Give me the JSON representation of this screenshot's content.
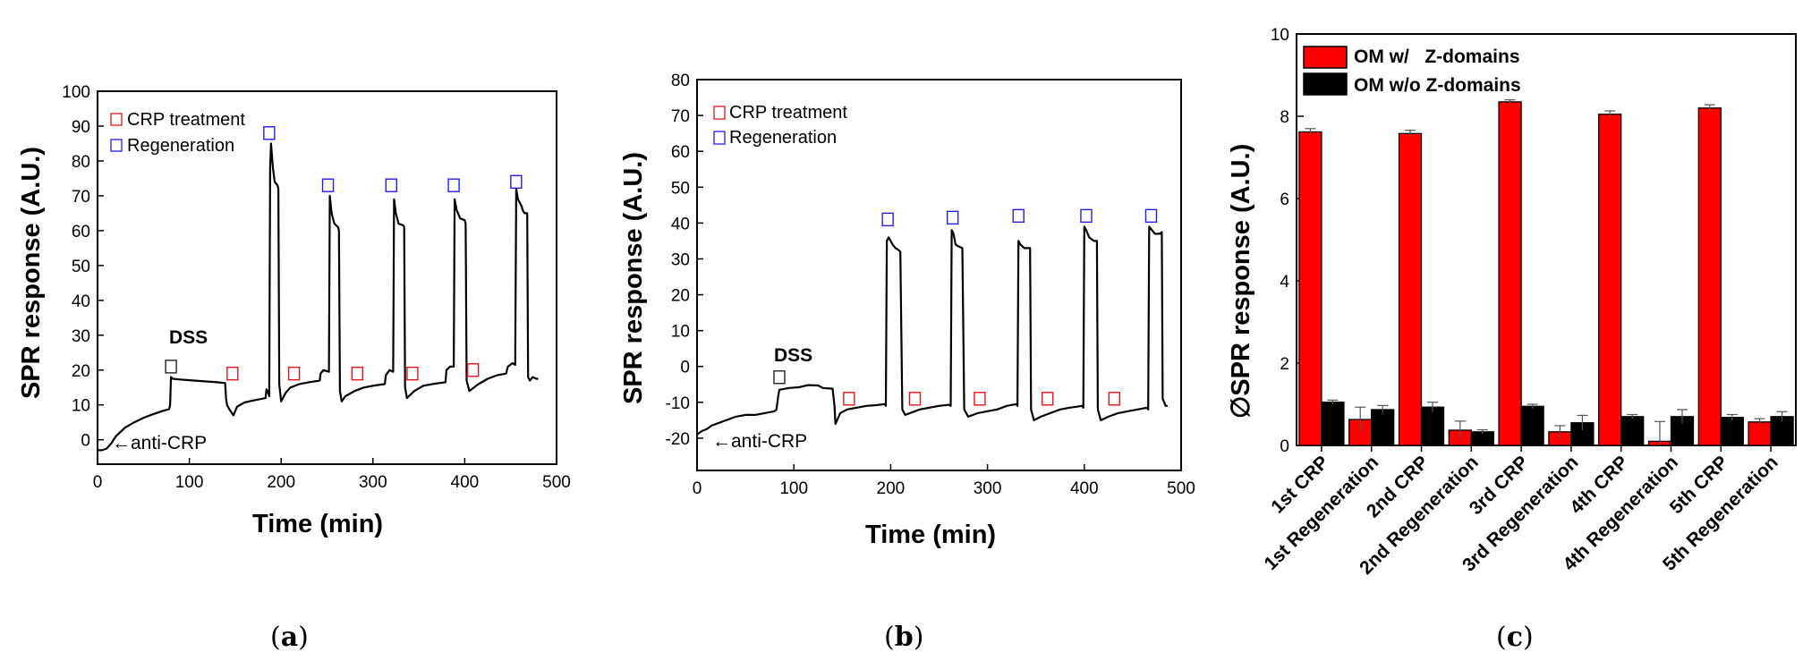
{
  "chart_data": [
    {
      "id": "a",
      "type": "line",
      "caption": "a",
      "xlabel": "Time (min)",
      "ylabel": "SPR response (A.U.)",
      "xlim": [
        0,
        500
      ],
      "ylim": [
        -7,
        100
      ],
      "xticks": [
        0,
        100,
        200,
        300,
        400,
        500
      ],
      "yticks": [
        0,
        10,
        20,
        30,
        40,
        50,
        60,
        70,
        80,
        90,
        100
      ],
      "legend": [
        {
          "label": "CRP treatment",
          "color": "#e8141b"
        },
        {
          "label": "Regeneration",
          "color": "#1f1ff5"
        }
      ],
      "annotations": [
        {
          "text": "DSS",
          "x": 82,
          "y": 27
        },
        {
          "text": "←anti-CRP",
          "x": 15,
          "y": -3
        }
      ],
      "markers": [
        {
          "kind": "dss",
          "x": 80,
          "y": 21
        },
        {
          "kind": "crp",
          "x": 147,
          "y": 19
        },
        {
          "kind": "crp",
          "x": 214,
          "y": 19
        },
        {
          "kind": "crp",
          "x": 283,
          "y": 19
        },
        {
          "kind": "crp",
          "x": 343,
          "y": 19
        },
        {
          "kind": "crp",
          "x": 409,
          "y": 20
        },
        {
          "kind": "regen",
          "x": 187,
          "y": 88
        },
        {
          "kind": "regen",
          "x": 251,
          "y": 73
        },
        {
          "kind": "regen",
          "x": 320,
          "y": 73
        },
        {
          "kind": "regen",
          "x": 388,
          "y": 73
        },
        {
          "kind": "regen",
          "x": 456,
          "y": 74
        }
      ],
      "trace": [
        [
          0,
          -3
        ],
        [
          5,
          -3
        ],
        [
          10,
          -2.5
        ],
        [
          15,
          -1
        ],
        [
          20,
          1
        ],
        [
          30,
          3.5
        ],
        [
          40,
          5
        ],
        [
          50,
          6.3
        ],
        [
          60,
          7.3
        ],
        [
          70,
          8.2
        ],
        [
          78,
          8.8
        ],
        [
          79,
          10
        ],
        [
          80,
          18
        ],
        [
          82,
          17.5
        ],
        [
          90,
          17.3
        ],
        [
          100,
          17.1
        ],
        [
          110,
          16.9
        ],
        [
          120,
          16.7
        ],
        [
          130,
          16.5
        ],
        [
          139,
          16.3
        ],
        [
          140,
          12
        ],
        [
          141,
          10
        ],
        [
          143,
          9
        ],
        [
          148,
          7
        ],
        [
          152,
          9.5
        ],
        [
          160,
          10.7
        ],
        [
          170,
          11.3
        ],
        [
          180,
          11.8
        ],
        [
          183,
          12
        ],
        [
          184,
          14.5
        ],
        [
          186,
          13.5
        ],
        [
          187,
          12.5
        ],
        [
          188,
          78
        ],
        [
          189,
          85
        ],
        [
          191,
          78
        ],
        [
          193,
          74
        ],
        [
          196,
          73
        ],
        [
          197,
          72
        ],
        [
          198,
          16
        ],
        [
          200,
          11
        ],
        [
          205,
          13.5
        ],
        [
          210,
          15
        ],
        [
          220,
          16
        ],
        [
          230,
          16.5
        ],
        [
          242,
          17
        ],
        [
          243,
          19
        ],
        [
          246,
          20
        ],
        [
          252,
          19.5
        ],
        [
          253,
          70
        ],
        [
          255,
          65
        ],
        [
          258,
          62
        ],
        [
          262,
          61
        ],
        [
          263,
          60
        ],
        [
          264,
          14
        ],
        [
          266,
          11
        ],
        [
          270,
          12.5
        ],
        [
          280,
          14
        ],
        [
          290,
          15
        ],
        [
          300,
          15.5
        ],
        [
          313,
          16
        ],
        [
          314,
          18.5
        ],
        [
          318,
          20
        ],
        [
          322,
          19.5
        ],
        [
          323,
          69
        ],
        [
          325,
          65
        ],
        [
          328,
          62
        ],
        [
          333,
          61.5
        ],
        [
          334,
          61
        ],
        [
          335,
          15
        ],
        [
          337,
          12
        ],
        [
          345,
          14
        ],
        [
          355,
          15.5
        ],
        [
          365,
          16
        ],
        [
          379,
          16.5
        ],
        [
          380,
          20
        ],
        [
          384,
          21
        ],
        [
          388,
          21
        ],
        [
          389,
          69
        ],
        [
          391,
          66
        ],
        [
          395,
          63.5
        ],
        [
          400,
          63
        ],
        [
          401,
          62
        ],
        [
          402,
          17
        ],
        [
          405,
          14
        ],
        [
          415,
          16
        ],
        [
          425,
          17.5
        ],
        [
          435,
          18.5
        ],
        [
          445,
          19
        ],
        [
          447,
          21
        ],
        [
          452,
          22
        ],
        [
          455,
          21.5
        ],
        [
          456,
          72
        ],
        [
          458,
          69
        ],
        [
          462,
          67
        ],
        [
          463,
          66
        ],
        [
          465,
          65
        ],
        [
          468,
          65
        ],
        [
          469,
          18
        ],
        [
          471,
          17
        ],
        [
          474,
          18
        ],
        [
          478,
          17.5
        ],
        [
          480,
          17.5
        ]
      ]
    },
    {
      "id": "b",
      "type": "line",
      "caption": "b",
      "xlabel": "Time (min)",
      "ylabel": "SPR response (A.U.)",
      "xlim": [
        0,
        500
      ],
      "ylim": [
        -29,
        80
      ],
      "xticks": [
        0,
        100,
        200,
        300,
        400,
        500
      ],
      "yticks": [
        -20,
        -10,
        0,
        10,
        20,
        30,
        40,
        50,
        60,
        70,
        80
      ],
      "legend": [
        {
          "label": "CRP treatment",
          "color": "#e8141b"
        },
        {
          "label": "Regeneration",
          "color": "#1f1ff5"
        }
      ],
      "annotations": [
        {
          "text": "DSS",
          "x": 82,
          "y": 2
        },
        {
          "text": "←anti-CRP",
          "x": 15,
          "y": -21
        }
      ],
      "markers": [
        {
          "kind": "dss",
          "x": 85,
          "y": -3
        },
        {
          "kind": "crp",
          "x": 157,
          "y": -9
        },
        {
          "kind": "crp",
          "x": 225,
          "y": -9
        },
        {
          "kind": "crp",
          "x": 292,
          "y": -9
        },
        {
          "kind": "crp",
          "x": 362,
          "y": -9
        },
        {
          "kind": "crp",
          "x": 431,
          "y": -9
        },
        {
          "kind": "regen",
          "x": 197,
          "y": 41
        },
        {
          "kind": "regen",
          "x": 264,
          "y": 41.5
        },
        {
          "kind": "regen",
          "x": 332,
          "y": 42
        },
        {
          "kind": "regen",
          "x": 402,
          "y": 42
        },
        {
          "kind": "regen",
          "x": 469,
          "y": 42
        }
      ],
      "trace": [
        [
          0,
          -19
        ],
        [
          5,
          -18
        ],
        [
          10,
          -17.5
        ],
        [
          15,
          -16.5
        ],
        [
          20,
          -16
        ],
        [
          30,
          -15
        ],
        [
          40,
          -14
        ],
        [
          50,
          -13.5
        ],
        [
          60,
          -13.5
        ],
        [
          70,
          -13
        ],
        [
          80,
          -12.5
        ],
        [
          82,
          -12
        ],
        [
          84,
          -8
        ],
        [
          85,
          -6.5
        ],
        [
          95,
          -6
        ],
        [
          105,
          -5.8
        ],
        [
          115,
          -5.2
        ],
        [
          125,
          -5.3
        ],
        [
          130,
          -6
        ],
        [
          140,
          -6.2
        ],
        [
          142,
          -11
        ],
        [
          143,
          -16
        ],
        [
          148,
          -13
        ],
        [
          155,
          -12
        ],
        [
          165,
          -11.5
        ],
        [
          175,
          -11
        ],
        [
          185,
          -10.8
        ],
        [
          194,
          -10.5
        ],
        [
          195,
          -11
        ],
        [
          196,
          35
        ],
        [
          198,
          36
        ],
        [
          200,
          35
        ],
        [
          202,
          34
        ],
        [
          205,
          33
        ],
        [
          208,
          32.5
        ],
        [
          210,
          32
        ],
        [
          212,
          -12
        ],
        [
          215,
          -13.5
        ],
        [
          220,
          -13
        ],
        [
          230,
          -12
        ],
        [
          240,
          -11.5
        ],
        [
          250,
          -11
        ],
        [
          260,
          -10.7
        ],
        [
          262,
          -11
        ],
        [
          263,
          38
        ],
        [
          265,
          37
        ],
        [
          267,
          34
        ],
        [
          270,
          33.5
        ],
        [
          274,
          33
        ],
        [
          276,
          -12
        ],
        [
          280,
          -14
        ],
        [
          290,
          -13
        ],
        [
          300,
          -12.5
        ],
        [
          310,
          -12
        ],
        [
          320,
          -11
        ],
        [
          330,
          -10.5
        ],
        [
          331,
          -11
        ],
        [
          332,
          35
        ],
        [
          334,
          34
        ],
        [
          338,
          33
        ],
        [
          344,
          33
        ],
        [
          345,
          -12
        ],
        [
          348,
          -15
        ],
        [
          355,
          -14
        ],
        [
          365,
          -13
        ],
        [
          375,
          -12
        ],
        [
          385,
          -11.5
        ],
        [
          398,
          -11
        ],
        [
          399,
          -11.5
        ],
        [
          400,
          39
        ],
        [
          402,
          38
        ],
        [
          405,
          36
        ],
        [
          410,
          35
        ],
        [
          413,
          35
        ],
        [
          414,
          -12
        ],
        [
          417,
          -15
        ],
        [
          425,
          -14
        ],
        [
          435,
          -13
        ],
        [
          445,
          -12.5
        ],
        [
          455,
          -12
        ],
        [
          465,
          -11.5
        ],
        [
          466,
          -12
        ],
        [
          467,
          39
        ],
        [
          470,
          38
        ],
        [
          473,
          37
        ],
        [
          478,
          37
        ],
        [
          480,
          37.5
        ],
        [
          481,
          -9
        ],
        [
          484,
          -11
        ],
        [
          486,
          -11
        ]
      ]
    },
    {
      "id": "c",
      "type": "bar",
      "caption": "c",
      "xlabel": "",
      "ylabel": "∅SPR response (A.U.)",
      "ylim": [
        0,
        10
      ],
      "yticks": [
        0,
        2,
        4,
        6,
        8,
        10
      ],
      "categories": [
        "1st CRP",
        "1st Regeneration",
        "2nd CRP",
        "2nd Regeneration",
        "3rd CRP",
        "3rd Regeneration",
        "4th CRP",
        "4th Regeneration",
        "5th CRP",
        "5th Regeneration"
      ],
      "series": [
        {
          "name": "OM w/   Z-domains",
          "color": "#ff0000",
          "values": [
            7.62,
            0.63,
            7.58,
            0.37,
            8.35,
            0.33,
            8.05,
            0.1,
            8.2,
            0.57
          ],
          "errors": [
            0.08,
            0.3,
            0.08,
            0.22,
            0.05,
            0.15,
            0.08,
            0.48,
            0.08,
            0.08
          ]
        },
        {
          "name": "OM w/o Z-domains",
          "color": "#000000",
          "values": [
            1.05,
            0.87,
            0.93,
            0.33,
            0.95,
            0.55,
            0.7,
            0.7,
            0.68,
            0.7
          ],
          "errors": [
            0.05,
            0.1,
            0.12,
            0.05,
            0.05,
            0.18,
            0.05,
            0.17,
            0.07,
            0.12
          ]
        }
      ]
    }
  ]
}
